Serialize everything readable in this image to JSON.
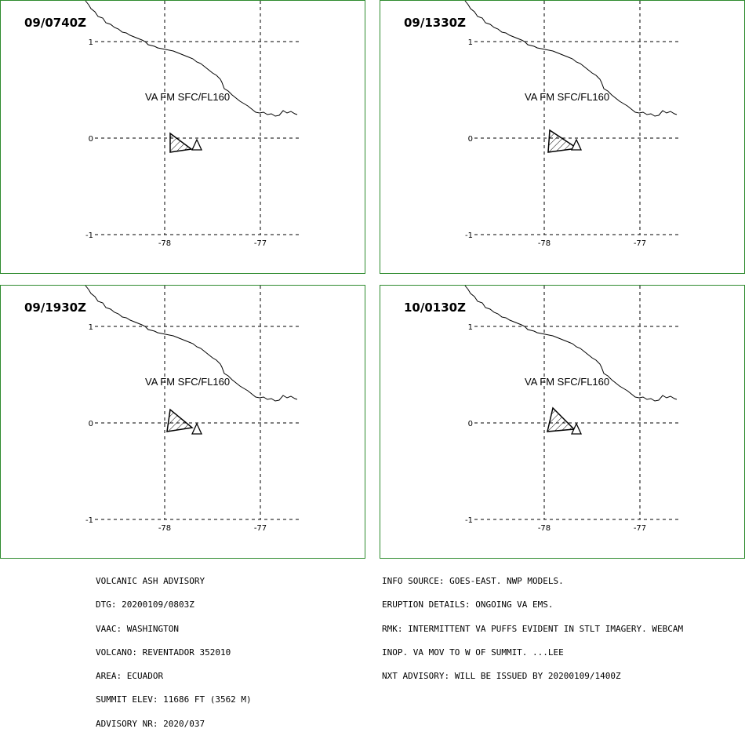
{
  "panels": [
    {
      "time": "09/0740Z",
      "label": "VA FM SFC/FL160"
    },
    {
      "time": "09/1330Z",
      "label": "VA FM SFC/FL160"
    },
    {
      "time": "09/1930Z",
      "label": "VA FM SFC/FL160"
    },
    {
      "time": "10/0130Z",
      "label": "VA FM SFC/FL160"
    }
  ],
  "axes": {
    "lat_ticks": [
      "1",
      "0",
      "-1"
    ],
    "lon_ticks": [
      "-78",
      "-77"
    ]
  },
  "advisory": {
    "left": [
      "VOLCANIC ASH ADVISORY",
      "DTG: 20200109/0803Z",
      "VAAC: WASHINGTON",
      "VOLCANO: REVENTADOR 352010",
      "AREA: ECUADOR",
      "SUMMIT ELEV: 11686 FT (3562 M)",
      "ADVISORY NR: 2020/037"
    ],
    "right": [
      "INFO SOURCE: GOES-EAST. NWP MODELS.",
      "ERUPTION DETAILS: ONGOING VA EMS.",
      "RMK: INTERMITTENT VA PUFFS EVIDENT IN STLT IMAGERY. WEBCAM",
      "INOP. VA MOV TO W OF SUMMIT. ...LEE",
      "NXT ADVISORY: WILL BE ISSUED BY 20200109/1400Z"
    ]
  },
  "colors": {
    "border": "#2e8b2e",
    "line": "#000000"
  }
}
